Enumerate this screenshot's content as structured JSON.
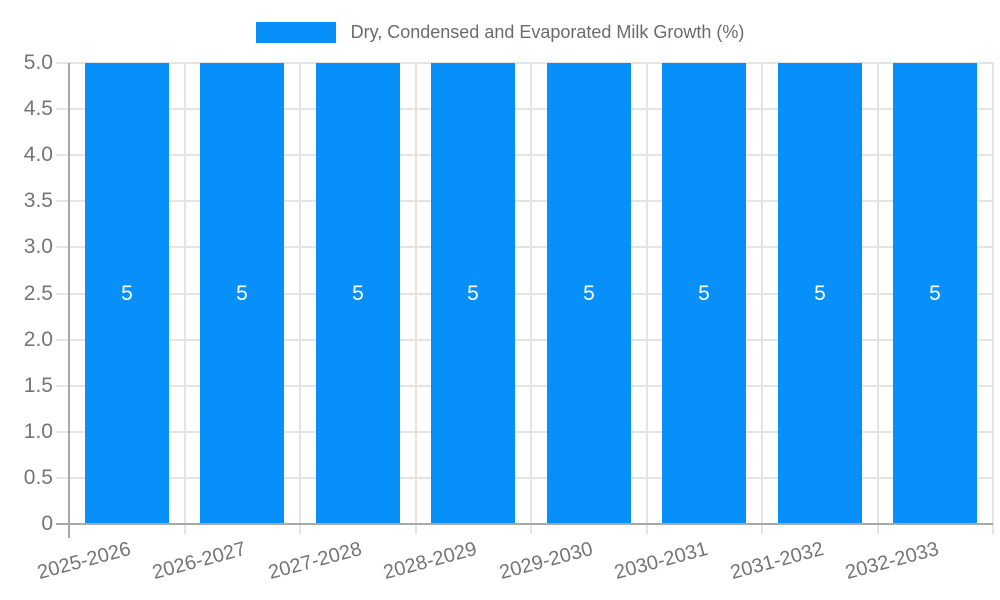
{
  "chart_data": {
    "type": "bar",
    "title": "Dry, Condensed and Evaporated Milk Growth (%)",
    "legend_position": "top",
    "categories": [
      "2025-2026",
      "2026-2027",
      "2027-2028",
      "2028-2029",
      "2029-2030",
      "2030-2031",
      "2031-2032",
      "2032-2033"
    ],
    "series": [
      {
        "name": "Dry, Condensed and Evaporated Milk Growth (%)",
        "values": [
          5,
          5,
          5,
          5,
          5,
          5,
          5,
          5
        ],
        "data_labels": [
          "5",
          "5",
          "5",
          "5",
          "5",
          "5",
          "5",
          "5"
        ]
      }
    ],
    "xlabel": "",
    "ylabel": "",
    "ylim": [
      0,
      5
    ],
    "ytick_labels": [
      "0",
      "0.5",
      "1.0",
      "1.5",
      "2.0",
      "2.5",
      "3.0",
      "3.5",
      "4.0",
      "4.5",
      "5.0"
    ],
    "grid": true,
    "x_label_rotation_deg": -15,
    "colors": {
      "bar": "#0890fa",
      "data_label": "#ffffff",
      "tick_text": "#757575",
      "legend_text": "#6b6b6b",
      "gridline": "#e4e4e4",
      "axis_line": "#a8a8a8"
    }
  }
}
